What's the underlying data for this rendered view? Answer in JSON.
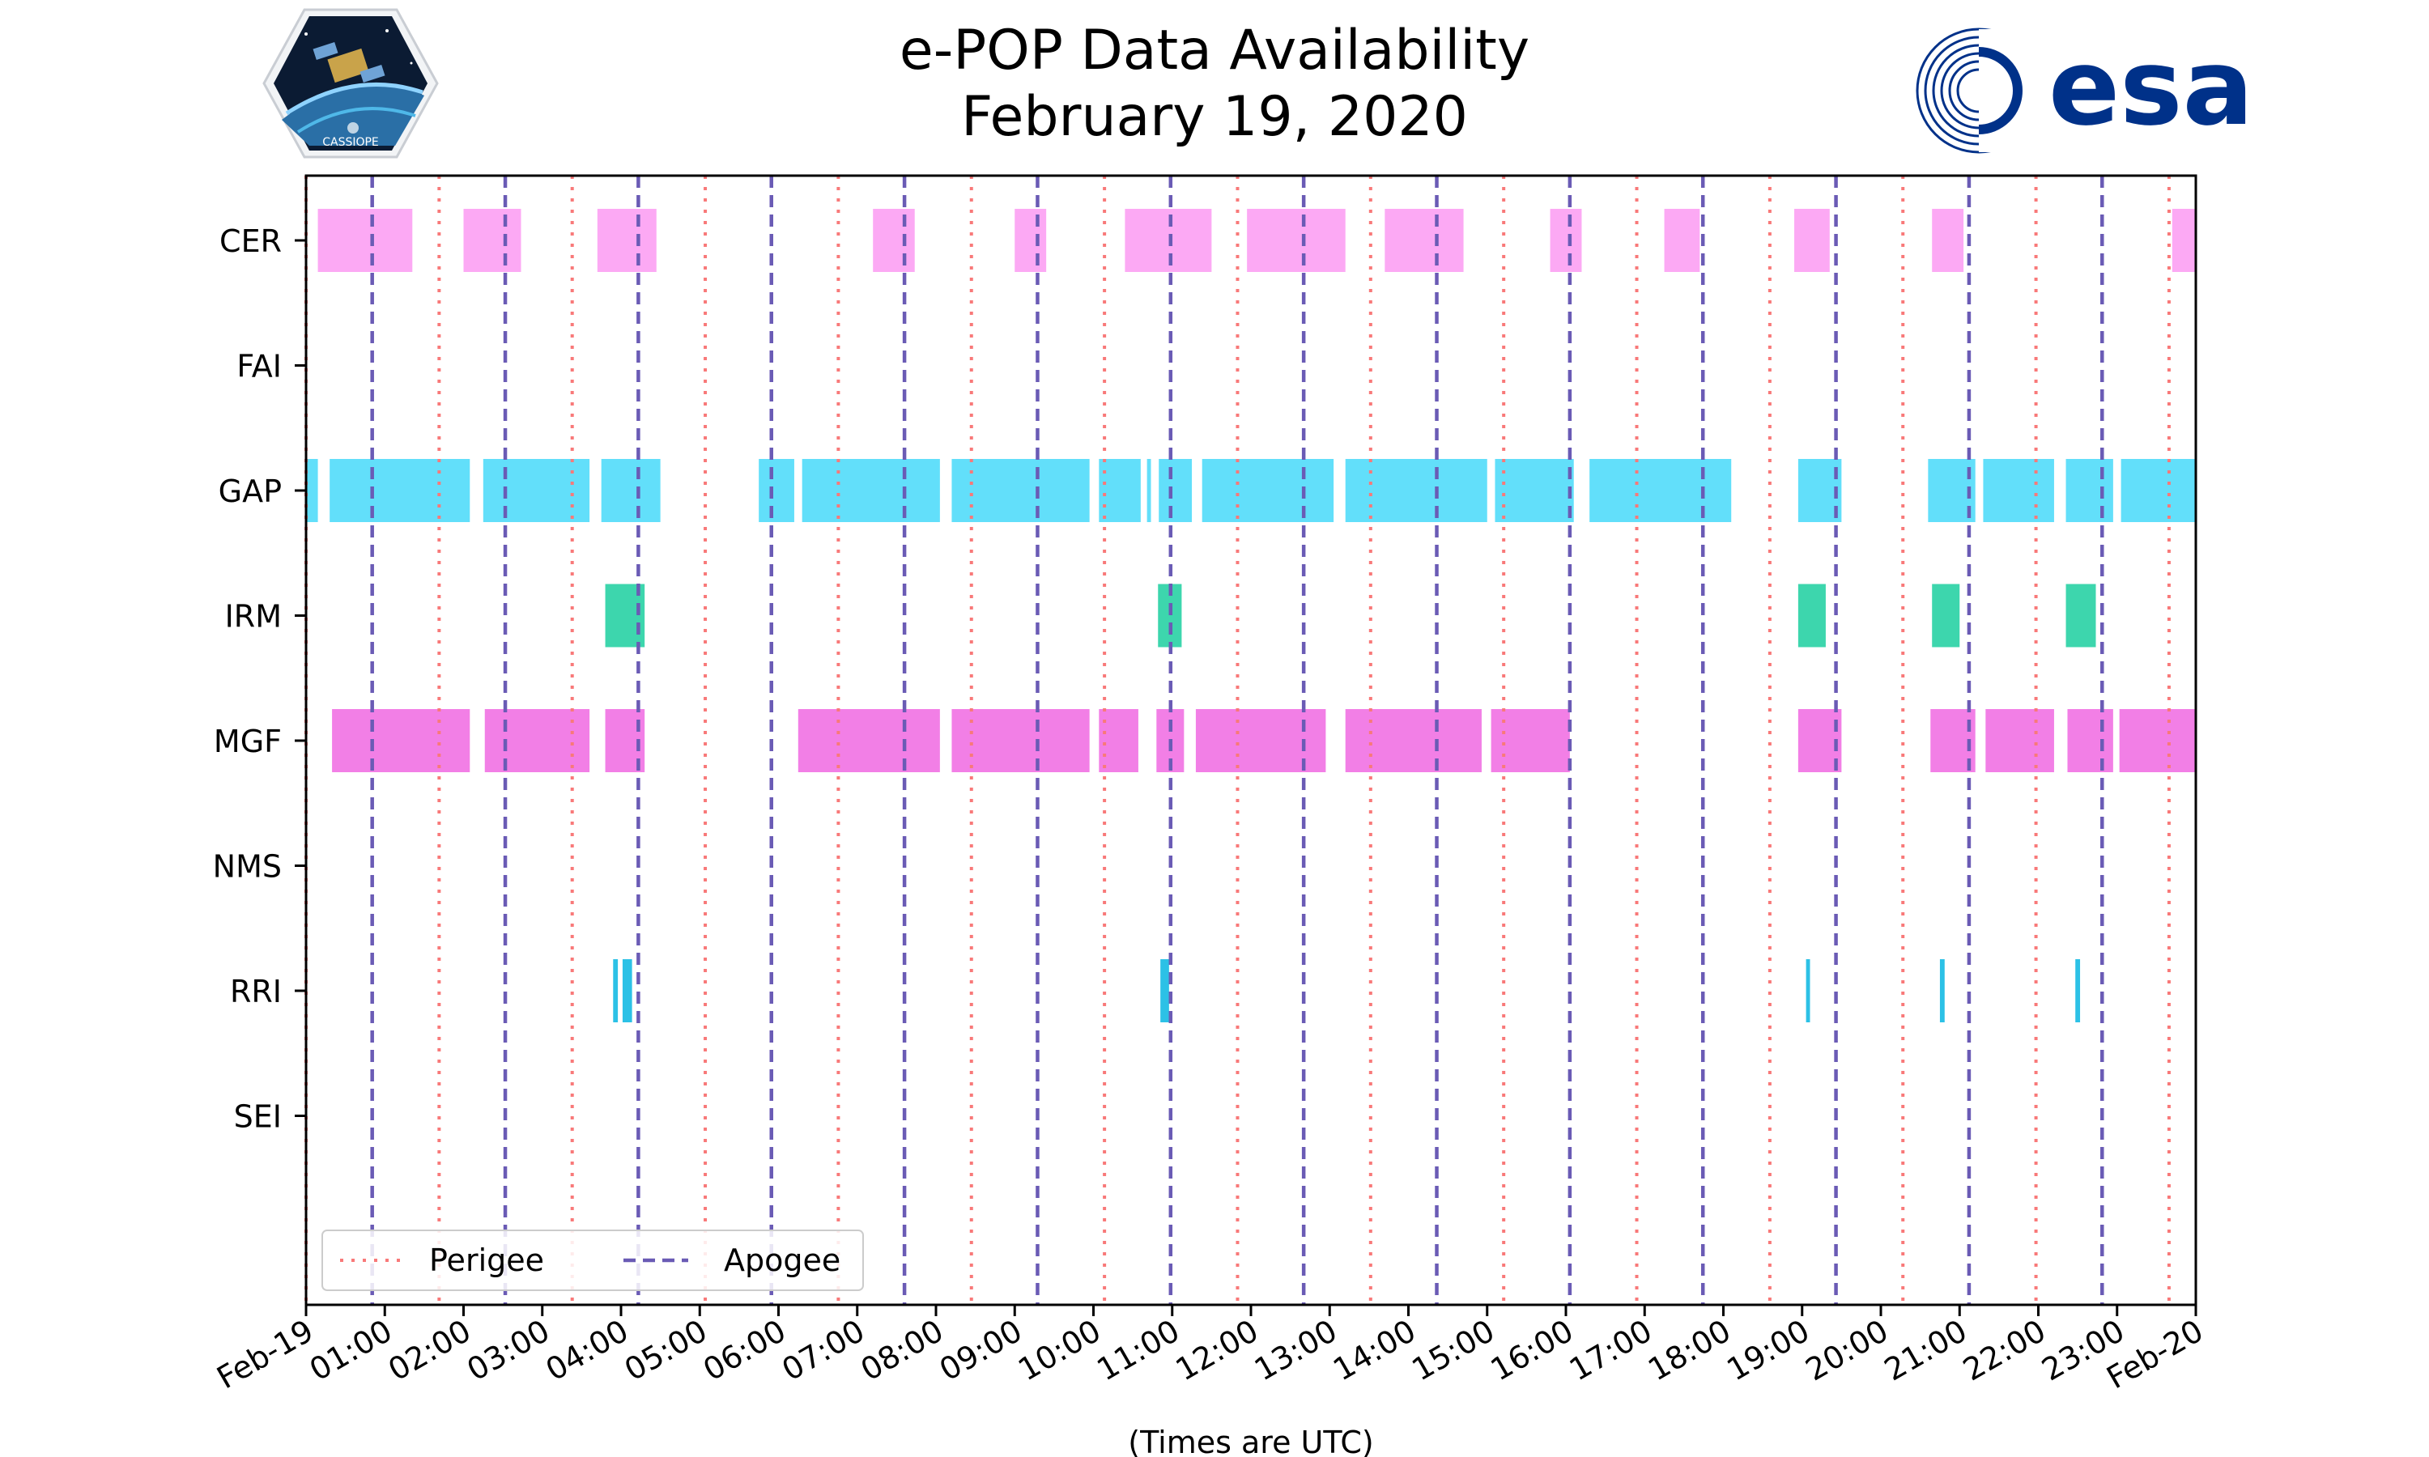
{
  "title": {
    "line1": "e-POP Data Availability",
    "line2": "February 19, 2020"
  },
  "logos": {
    "left": {
      "icon": "cassiope-mission-logo",
      "text": "CASSIOPE"
    },
    "right": {
      "icon": "esa-logo",
      "text": "esa",
      "color": "#003189"
    }
  },
  "colors": {
    "CER": "#fca9f4",
    "GAP": "#62dffa",
    "IRM": "#3dd6ad",
    "MGF": "#f27fe6",
    "RRI": "#2cc1e6",
    "perigee": "#f87979",
    "apogee": "#6a5bb5"
  },
  "chart_data": {
    "type": "timeline",
    "xlabel": "(Times are UTC)",
    "xlim_hours": [
      0,
      24
    ],
    "x_tick_labels": [
      "Feb-19",
      "01:00",
      "02:00",
      "03:00",
      "04:00",
      "05:00",
      "06:00",
      "07:00",
      "08:00",
      "09:00",
      "10:00",
      "11:00",
      "12:00",
      "13:00",
      "14:00",
      "15:00",
      "16:00",
      "17:00",
      "18:00",
      "19:00",
      "20:00",
      "21:00",
      "22:00",
      "23:00",
      "Feb-20"
    ],
    "instruments": [
      "CER",
      "FAI",
      "GAP",
      "IRM",
      "MGF",
      "NMS",
      "RRI",
      "SEI"
    ],
    "segments": {
      "CER": [
        [
          0.15,
          1.35
        ],
        [
          2.0,
          2.73
        ],
        [
          3.7,
          4.45
        ],
        [
          7.2,
          7.73
        ],
        [
          9.0,
          9.4
        ],
        [
          10.4,
          11.5
        ],
        [
          11.95,
          13.2
        ],
        [
          13.7,
          14.7
        ],
        [
          15.8,
          16.2
        ],
        [
          17.25,
          17.7
        ],
        [
          18.9,
          19.35
        ],
        [
          20.65,
          21.05
        ],
        [
          23.7,
          24.0
        ]
      ],
      "FAI": [],
      "GAP": [
        [
          0.0,
          0.15
        ],
        [
          0.3,
          2.08
        ],
        [
          2.25,
          3.6
        ],
        [
          3.75,
          4.5
        ],
        [
          5.75,
          6.2
        ],
        [
          6.3,
          8.05
        ],
        [
          8.2,
          9.95
        ],
        [
          10.07,
          10.6
        ],
        [
          10.68,
          10.73
        ],
        [
          10.83,
          11.25
        ],
        [
          11.38,
          13.05
        ],
        [
          13.2,
          15.0
        ],
        [
          15.1,
          16.1
        ],
        [
          16.3,
          18.1
        ],
        [
          18.95,
          19.5
        ],
        [
          20.6,
          21.2
        ],
        [
          21.3,
          22.2
        ],
        [
          22.35,
          22.95
        ],
        [
          23.05,
          24.0
        ]
      ],
      "IRM": [
        [
          3.8,
          4.3
        ],
        [
          10.82,
          11.12
        ],
        [
          18.95,
          19.3
        ],
        [
          20.65,
          21.0
        ],
        [
          22.35,
          22.73
        ]
      ],
      "MGF": [
        [
          0.33,
          2.08
        ],
        [
          2.27,
          3.6
        ],
        [
          3.8,
          4.3
        ],
        [
          6.25,
          8.05
        ],
        [
          8.2,
          9.95
        ],
        [
          10.07,
          10.57
        ],
        [
          10.8,
          11.15
        ],
        [
          11.3,
          12.95
        ],
        [
          13.2,
          14.93
        ],
        [
          15.05,
          16.05
        ],
        [
          18.95,
          19.5
        ],
        [
          20.63,
          21.2
        ],
        [
          21.33,
          22.2
        ],
        [
          22.37,
          22.95
        ],
        [
          23.03,
          24.0
        ]
      ],
      "NMS": [],
      "RRI": [
        [
          3.9,
          3.96
        ],
        [
          4.02,
          4.14
        ],
        [
          10.85,
          10.96
        ],
        [
          19.05,
          19.1
        ],
        [
          20.75,
          20.81
        ],
        [
          22.47,
          22.53
        ]
      ],
      "SEI": []
    },
    "perigee_hours": [
      0.0,
      1.69,
      3.38,
      5.07,
      6.76,
      8.45,
      10.14,
      11.83,
      13.52,
      15.21,
      16.9,
      18.59,
      20.28,
      21.97,
      23.66
    ],
    "apogee_hours": [
      0.84,
      2.53,
      4.22,
      5.91,
      7.6,
      9.29,
      10.98,
      12.67,
      14.36,
      16.05,
      17.74,
      19.43,
      21.12,
      22.81
    ],
    "legend": {
      "position": "lower-left",
      "entries": [
        {
          "label": "Perigee",
          "style": "dotted"
        },
        {
          "label": "Apogee",
          "style": "dashed"
        }
      ]
    }
  }
}
